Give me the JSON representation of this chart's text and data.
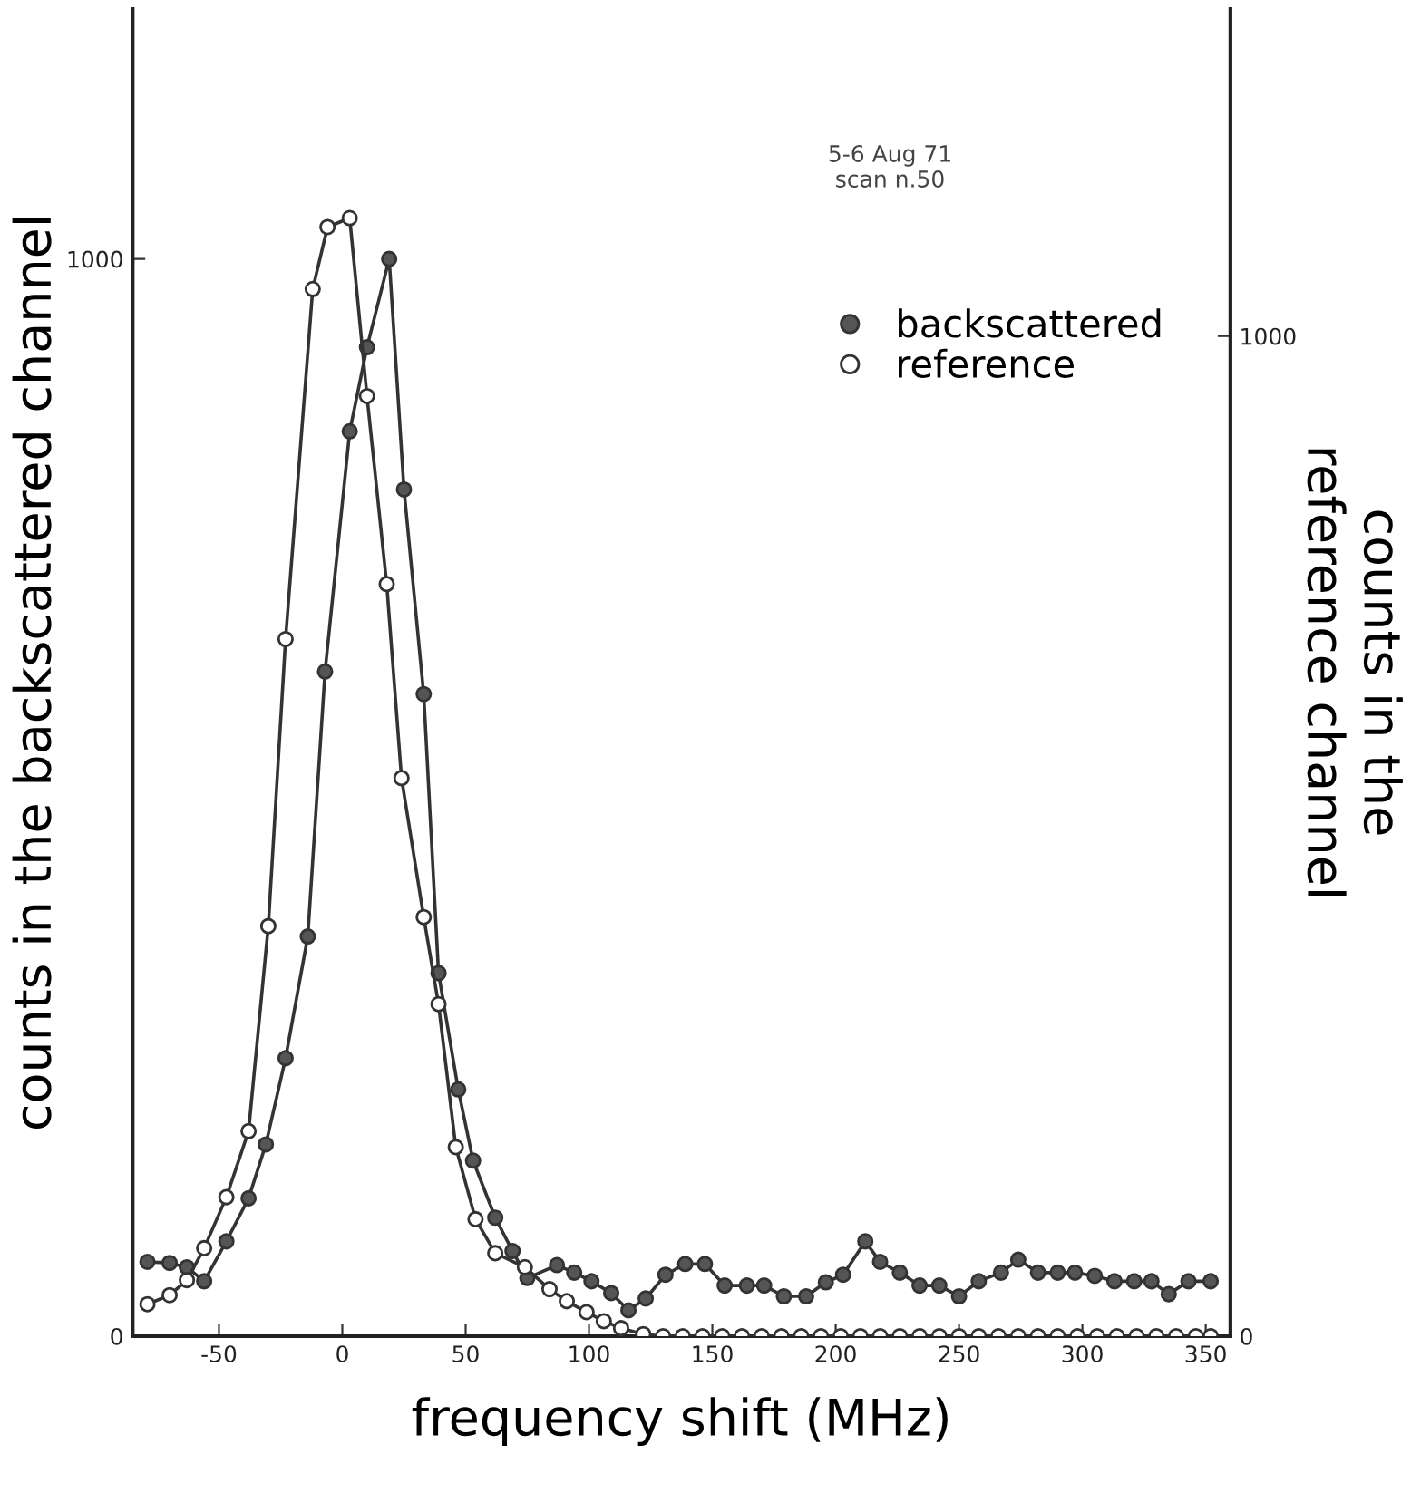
{
  "chart_data": {
    "type": "line",
    "xlabel": "frequency shift (MHz)",
    "ylabel": "counts in the backscattered channel",
    "y2label": "counts in the\nreference channel",
    "annotations": [
      "5-6 Aug 71\nscan n.50"
    ],
    "xlim": [
      -85,
      360
    ],
    "xticks": [
      -50,
      0,
      50,
      100,
      150,
      200,
      250,
      300,
      350
    ],
    "ylim": [
      0,
      1232
    ],
    "yticks": [
      0,
      1000
    ],
    "y2lim": [
      0,
      1327
    ],
    "y2ticks": [
      0,
      1000
    ],
    "marker": "circle",
    "legend": "top right",
    "grid": false,
    "series": [
      {
        "name": "backscattered",
        "color": "#555555",
        "x": [
          -79,
          -70,
          -63,
          -56,
          -47,
          -38,
          -31,
          -23,
          -14,
          -7,
          3,
          10,
          19,
          25,
          33,
          39,
          47,
          53,
          62,
          69,
          75,
          87,
          94,
          101,
          109,
          116,
          123,
          131,
          139,
          147,
          155,
          164,
          171,
          179,
          188,
          196,
          203,
          212,
          218,
          226,
          234,
          242,
          250,
          258,
          267,
          274,
          282,
          290,
          297,
          305,
          313,
          321,
          328,
          335,
          343,
          352
        ],
        "values": [
          69,
          68,
          64,
          51,
          88,
          128,
          178,
          258,
          371,
          617,
          840,
          918,
          1000,
          786,
          596,
          337,
          229,
          163,
          110,
          79,
          54,
          66,
          59,
          51,
          40,
          24,
          35,
          57,
          67,
          67,
          47,
          47,
          47,
          37,
          37,
          50,
          57,
          88,
          69,
          59,
          47,
          47,
          37,
          51,
          59,
          71,
          59,
          59,
          59,
          56,
          51,
          51,
          51,
          39,
          51,
          51
        ]
      },
      {
        "name": "reference",
        "color": "#ffffff",
        "axis": "y2",
        "x": [
          -79,
          -70,
          -63,
          -56,
          -47,
          -38,
          -30,
          -23,
          -12,
          -6,
          3,
          10,
          18,
          24,
          33,
          39,
          46,
          54,
          62,
          74,
          84,
          91,
          99,
          106,
          113,
          122,
          130,
          138,
          146,
          154,
          162,
          170,
          178,
          186,
          194,
          202,
          210,
          218,
          226,
          234,
          242,
          250,
          258,
          266,
          274,
          282,
          290,
          298,
          306,
          314,
          322,
          330,
          338,
          346,
          352
        ],
        "values": [
          32,
          41,
          56,
          88,
          139,
          205,
          410,
          697,
          1047,
          1109,
          1118,
          940,
          752,
          558,
          419,
          332,
          189,
          117,
          83,
          69,
          47,
          35,
          24,
          15,
          8,
          2,
          0,
          0,
          0,
          0,
          0,
          0,
          0,
          0,
          0,
          0,
          0,
          0,
          0,
          0,
          0,
          0,
          0,
          0,
          0,
          0,
          0,
          0,
          0,
          0,
          0,
          0,
          0,
          0,
          0
        ]
      }
    ]
  }
}
